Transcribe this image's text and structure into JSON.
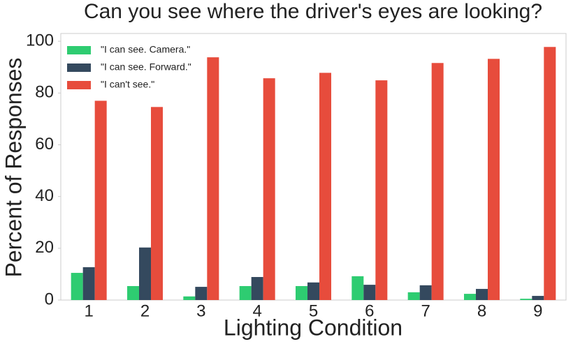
{
  "chart_data": {
    "type": "bar",
    "title": "Can you see where the driver's eyes are looking?",
    "x_label": "Lighting Condition",
    "y_label": "Percent of Responses",
    "categories": [
      "1",
      "2",
      "3",
      "4",
      "5",
      "6",
      "7",
      "8",
      "9"
    ],
    "series": [
      {
        "name": "\"I can see. Camera.\"",
        "color": "#2ecc71",
        "values": [
          10.5,
          5.4,
          1.4,
          5.4,
          5.4,
          9.2,
          3.0,
          2.4,
          0.5
        ]
      },
      {
        "name": "\"I can see. Forward.\"",
        "color": "#34495e",
        "values": [
          12.7,
          20.3,
          5.1,
          8.9,
          6.8,
          5.9,
          5.7,
          4.3,
          1.6
        ]
      },
      {
        "name": "\"I can't see.\"",
        "color": "#e74c3c",
        "values": [
          77,
          74.6,
          93.8,
          85.7,
          87.8,
          84.9,
          91.6,
          93.2,
          97.8
        ]
      }
    ],
    "ylim": [
      0,
      103
    ],
    "yticks": [
      0,
      20,
      40,
      60,
      80,
      100
    ],
    "legend": "upper left"
  }
}
